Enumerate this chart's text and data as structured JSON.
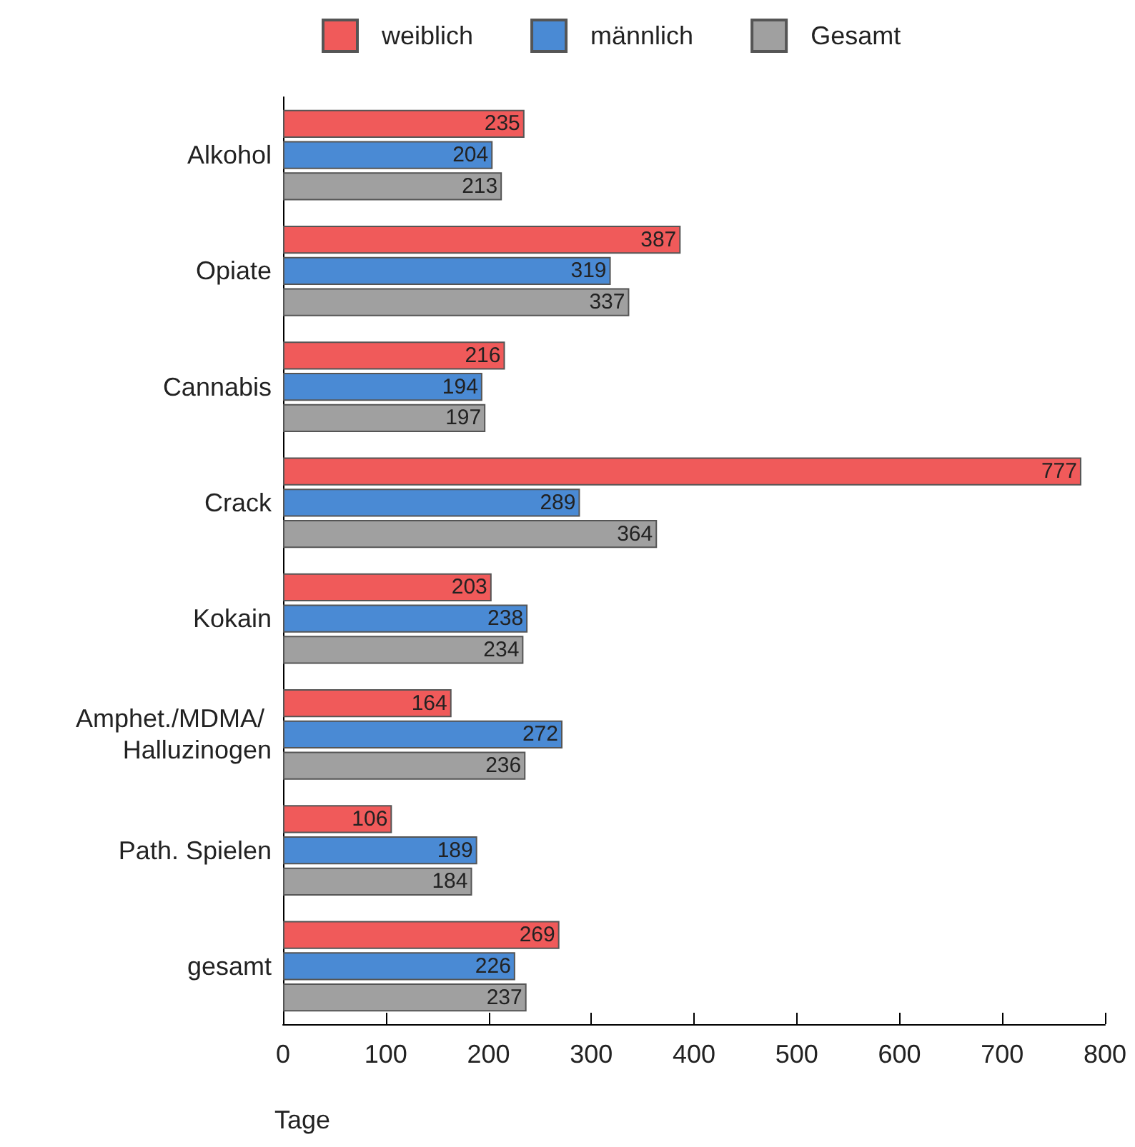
{
  "chart_data": {
    "type": "bar",
    "orientation": "horizontal",
    "xlabel": "Tage",
    "categories": [
      "Alkohol",
      "Opiate",
      "Cannabis",
      "Crack",
      "Kokain",
      "Amphet./MDMA/ Halluzinogen",
      "Path. Spielen",
      "gesamt"
    ],
    "series": [
      {
        "name": "weiblich",
        "color": "#f05a5a",
        "values": [
          235,
          387,
          216,
          777,
          203,
          164,
          106,
          269
        ]
      },
      {
        "name": "männlich",
        "color": "#4a8ad4",
        "values": [
          204,
          319,
          194,
          289,
          238,
          272,
          189,
          226
        ]
      },
      {
        "name": "Gesamt",
        "color": "#a0a0a0",
        "values": [
          213,
          337,
          197,
          364,
          234,
          236,
          184,
          237
        ]
      }
    ],
    "xlim": [
      0,
      800
    ],
    "xticks": [
      0,
      100,
      200,
      300,
      400,
      500,
      600,
      700,
      800
    ],
    "data_labels": true,
    "legend": "top",
    "grid": false
  }
}
